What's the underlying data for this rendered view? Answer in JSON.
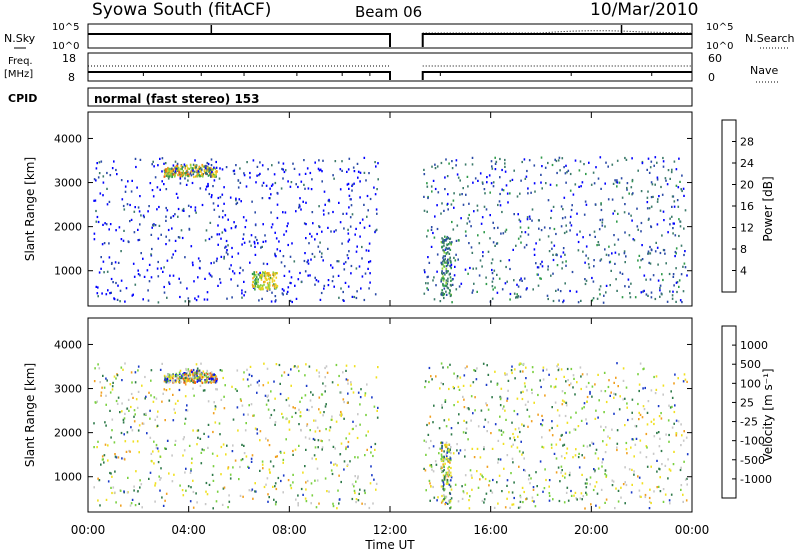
{
  "header": {
    "station": "Syowa South (fitACF)",
    "beam": "Beam 06",
    "date": "10/Mar/2010"
  },
  "noise_panel": {
    "left_label": "N.Sky",
    "right_label": "N.Search",
    "ticks": [
      "10^5",
      "10^0"
    ]
  },
  "freq_panel": {
    "left_label_1": "Freq.",
    "left_label_2": "[MHz]",
    "left_ticks": [
      "18",
      "8"
    ],
    "right_ticks": [
      "60",
      "0"
    ],
    "right_label": "Nave"
  },
  "cpid": {
    "label": "CPID",
    "value": "normal (fast stereo) 153"
  },
  "colors": {
    "power_scale": [
      "#0000ff",
      "#2a4aa6",
      "#3c7a6a",
      "#2f9a4a",
      "#8fd03a",
      "#f0d020",
      "#f0a020",
      "#f06010",
      "#e01818"
    ],
    "velocity_scale": [
      "#0000ff",
      "#1a3ac8",
      "#2f7a4a",
      "#7ad040",
      "#c8c8c8",
      "#f0e020",
      "#f0a020",
      "#f06010",
      "#e00000"
    ]
  },
  "chart_data": [
    {
      "type": "heatmap",
      "name": "power",
      "ylabel": "Slant Range [km]",
      "x_ticks": [
        "00:00",
        "04:00",
        "08:00",
        "12:00",
        "16:00",
        "20:00",
        "00:00"
      ],
      "y_ticks": [
        "1000",
        "2000",
        "3000",
        "4000"
      ],
      "xlim": [
        0,
        24
      ],
      "ylim": [
        200,
        4600
      ],
      "data_gap_hours": [
        12.0,
        13.3
      ],
      "colorbar": {
        "label": "Power [dB]",
        "ticks": [
          "4",
          "8",
          "12",
          "16",
          "20",
          "24",
          "28"
        ],
        "range": [
          0,
          32
        ]
      },
      "echo_regions": [
        {
          "t": [
            3.0,
            5.1
          ],
          "r": [
            3150,
            3450
          ],
          "value": 18
        },
        {
          "t": [
            0.2,
            11.5
          ],
          "r": [
            300,
            3600
          ],
          "value": 4
        },
        {
          "t": [
            13.3,
            23.8
          ],
          "r": [
            300,
            3600
          ],
          "value": 6
        },
        {
          "t": [
            14.0,
            14.4
          ],
          "r": [
            400,
            1800
          ],
          "value": 12
        },
        {
          "t": [
            6.5,
            7.5
          ],
          "r": [
            600,
            1000
          ],
          "value": 20
        }
      ]
    },
    {
      "type": "heatmap",
      "name": "velocity",
      "ylabel": "Slant Range [km]",
      "xlabel": "Time UT",
      "x_ticks": [
        "00:00",
        "04:00",
        "08:00",
        "12:00",
        "16:00",
        "20:00",
        "00:00"
      ],
      "y_ticks": [
        "1000",
        "2000",
        "3000",
        "4000"
      ],
      "xlim": [
        0,
        24
      ],
      "ylim": [
        200,
        4600
      ],
      "data_gap_hours": [
        12.0,
        13.3
      ],
      "colorbar": {
        "label": "Velocity [m s⁻¹]",
        "ticks": [
          "1000",
          "500",
          "100",
          "25",
          "-25",
          "-100",
          "-500",
          "-1000"
        ]
      },
      "echo_regions": [
        {
          "t": [
            3.0,
            5.1
          ],
          "r": [
            3150,
            3450
          ],
          "value": -200
        },
        {
          "t": [
            0.2,
            11.5
          ],
          "r": [
            300,
            3600
          ],
          "value": -60
        },
        {
          "t": [
            13.3,
            23.8
          ],
          "r": [
            300,
            3600
          ],
          "value": 50
        },
        {
          "t": [
            14.0,
            14.4
          ],
          "r": [
            400,
            1800
          ],
          "value": -600
        }
      ]
    }
  ]
}
